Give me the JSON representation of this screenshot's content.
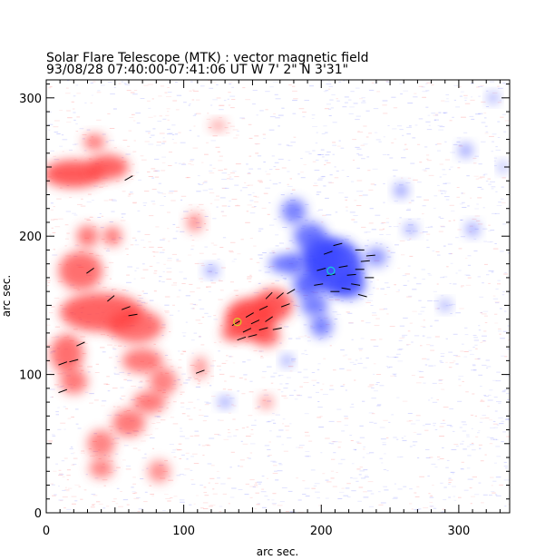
{
  "chart_data": {
    "type": "heatmap",
    "title": "Solar Flare Telescope (MTK) : vector magnetic field",
    "subtitle": "93/08/28  07:40:00-07:41:06 UT     W 7' 2\"   N 3'31\"",
    "xlabel": "arc sec.",
    "ylabel": "arc sec.",
    "xlim": [
      0,
      337
    ],
    "ylim": [
      0,
      313
    ],
    "x_ticks": [
      0,
      100,
      200,
      300
    ],
    "y_ticks": [
      0,
      100,
      200,
      300
    ],
    "x_tick_labels": [
      "0",
      "100",
      "200",
      "300"
    ],
    "y_tick_labels": [
      "0",
      "100",
      "200",
      "300"
    ],
    "colors": {
      "positive_polarity": "#ff3b3b",
      "negative_polarity": "#3b46ff",
      "vectors": "#000000",
      "frame": "#000000",
      "marker_cyan": "#18c8d8",
      "marker_yellow": "#d8c828"
    },
    "positive_regions": [
      {
        "x": 20,
        "y": 245,
        "rx": 22,
        "ry": 10,
        "strength": 0.9
      },
      {
        "x": 45,
        "y": 250,
        "rx": 15,
        "ry": 9,
        "strength": 0.8
      },
      {
        "x": 35,
        "y": 268,
        "rx": 8,
        "ry": 6,
        "strength": 0.6
      },
      {
        "x": 30,
        "y": 200,
        "rx": 8,
        "ry": 8,
        "strength": 0.6
      },
      {
        "x": 48,
        "y": 200,
        "rx": 7,
        "ry": 7,
        "strength": 0.6
      },
      {
        "x": 25,
        "y": 175,
        "rx": 16,
        "ry": 14,
        "strength": 0.7
      },
      {
        "x": 40,
        "y": 145,
        "rx": 30,
        "ry": 14,
        "strength": 0.8
      },
      {
        "x": 65,
        "y": 135,
        "rx": 20,
        "ry": 12,
        "strength": 0.7
      },
      {
        "x": 15,
        "y": 115,
        "rx": 12,
        "ry": 14,
        "strength": 0.7
      },
      {
        "x": 20,
        "y": 95,
        "rx": 10,
        "ry": 9,
        "strength": 0.6
      },
      {
        "x": 70,
        "y": 110,
        "rx": 15,
        "ry": 9,
        "strength": 0.6
      },
      {
        "x": 85,
        "y": 95,
        "rx": 10,
        "ry": 10,
        "strength": 0.5
      },
      {
        "x": 75,
        "y": 80,
        "rx": 12,
        "ry": 8,
        "strength": 0.6
      },
      {
        "x": 60,
        "y": 65,
        "rx": 12,
        "ry": 10,
        "strength": 0.6
      },
      {
        "x": 40,
        "y": 50,
        "rx": 10,
        "ry": 10,
        "strength": 0.5
      },
      {
        "x": 40,
        "y": 32,
        "rx": 9,
        "ry": 7,
        "strength": 0.5
      },
      {
        "x": 82,
        "y": 30,
        "rx": 8,
        "ry": 8,
        "strength": 0.4
      },
      {
        "x": 108,
        "y": 210,
        "rx": 6,
        "ry": 7,
        "strength": 0.4
      },
      {
        "x": 112,
        "y": 105,
        "rx": 5,
        "ry": 8,
        "strength": 0.4
      },
      {
        "x": 148,
        "y": 140,
        "rx": 18,
        "ry": 15,
        "strength": 1.0
      },
      {
        "x": 165,
        "y": 150,
        "rx": 14,
        "ry": 12,
        "strength": 0.9
      },
      {
        "x": 160,
        "y": 128,
        "rx": 10,
        "ry": 8,
        "strength": 0.7
      },
      {
        "x": 135,
        "y": 130,
        "rx": 8,
        "ry": 6,
        "strength": 0.6
      },
      {
        "x": 160,
        "y": 80,
        "rx": 5,
        "ry": 5,
        "strength": 0.3
      },
      {
        "x": 125,
        "y": 280,
        "rx": 6,
        "ry": 4,
        "strength": 0.25
      }
    ],
    "negative_regions": [
      {
        "x": 210,
        "y": 178,
        "rx": 20,
        "ry": 20,
        "strength": 1.0
      },
      {
        "x": 200,
        "y": 185,
        "rx": 15,
        "ry": 14,
        "strength": 0.9
      },
      {
        "x": 220,
        "y": 165,
        "rx": 12,
        "ry": 10,
        "strength": 0.8
      },
      {
        "x": 190,
        "y": 165,
        "rx": 10,
        "ry": 10,
        "strength": 0.8
      },
      {
        "x": 180,
        "y": 180,
        "rx": 8,
        "ry": 8,
        "strength": 0.7
      },
      {
        "x": 170,
        "y": 180,
        "rx": 8,
        "ry": 6,
        "strength": 0.6
      },
      {
        "x": 180,
        "y": 218,
        "rx": 9,
        "ry": 9,
        "strength": 0.6
      },
      {
        "x": 192,
        "y": 200,
        "rx": 12,
        "ry": 10,
        "strength": 0.7
      },
      {
        "x": 200,
        "y": 135,
        "rx": 8,
        "ry": 8,
        "strength": 0.6
      },
      {
        "x": 195,
        "y": 150,
        "rx": 10,
        "ry": 8,
        "strength": 0.6
      },
      {
        "x": 240,
        "y": 185,
        "rx": 8,
        "ry": 7,
        "strength": 0.4
      },
      {
        "x": 120,
        "y": 175,
        "rx": 5,
        "ry": 4,
        "strength": 0.4
      },
      {
        "x": 175,
        "y": 110,
        "rx": 4,
        "ry": 4,
        "strength": 0.4
      },
      {
        "x": 130,
        "y": 80,
        "rx": 5,
        "ry": 4,
        "strength": 0.35
      },
      {
        "x": 258,
        "y": 233,
        "rx": 5,
        "ry": 5,
        "strength": 0.4
      },
      {
        "x": 265,
        "y": 205,
        "rx": 5,
        "ry": 4,
        "strength": 0.3
      },
      {
        "x": 305,
        "y": 262,
        "rx": 5,
        "ry": 5,
        "strength": 0.35
      },
      {
        "x": 310,
        "y": 205,
        "rx": 5,
        "ry": 5,
        "strength": 0.3
      },
      {
        "x": 325,
        "y": 300,
        "rx": 4,
        "ry": 4,
        "strength": 0.3
      },
      {
        "x": 332,
        "y": 250,
        "rx": 3,
        "ry": 4,
        "strength": 0.3
      },
      {
        "x": 290,
        "y": 150,
        "rx": 4,
        "ry": 4,
        "strength": 0.3
      }
    ],
    "vectors": [
      {
        "x": 60,
        "y": 242,
        "angle": 30
      },
      {
        "x": 32,
        "y": 175,
        "angle": 35
      },
      {
        "x": 47,
        "y": 155,
        "angle": 40
      },
      {
        "x": 58,
        "y": 148,
        "angle": 20
      },
      {
        "x": 63,
        "y": 143,
        "angle": 10
      },
      {
        "x": 25,
        "y": 122,
        "angle": 25
      },
      {
        "x": 12,
        "y": 108,
        "angle": 20
      },
      {
        "x": 20,
        "y": 110,
        "angle": 15
      },
      {
        "x": 12,
        "y": 88,
        "angle": 20
      },
      {
        "x": 112,
        "y": 102,
        "angle": 20
      },
      {
        "x": 138,
        "y": 137,
        "angle": 30
      },
      {
        "x": 146,
        "y": 132,
        "angle": 25
      },
      {
        "x": 152,
        "y": 138,
        "angle": 25
      },
      {
        "x": 158,
        "y": 133,
        "angle": 15
      },
      {
        "x": 162,
        "y": 140,
        "angle": 35
      },
      {
        "x": 168,
        "y": 133,
        "angle": 10
      },
      {
        "x": 148,
        "y": 143,
        "angle": 30
      },
      {
        "x": 158,
        "y": 148,
        "angle": 25
      },
      {
        "x": 162,
        "y": 157,
        "angle": 45
      },
      {
        "x": 170,
        "y": 157,
        "angle": 40
      },
      {
        "x": 178,
        "y": 160,
        "angle": 30
      },
      {
        "x": 174,
        "y": 150,
        "angle": 20
      },
      {
        "x": 142,
        "y": 126,
        "angle": 20
      },
      {
        "x": 150,
        "y": 128,
        "angle": 15
      },
      {
        "x": 205,
        "y": 188,
        "angle": 20
      },
      {
        "x": 212,
        "y": 194,
        "angle": 15
      },
      {
        "x": 200,
        "y": 176,
        "angle": 15
      },
      {
        "x": 207,
        "y": 172,
        "angle": 10
      },
      {
        "x": 216,
        "y": 178,
        "angle": 10
      },
      {
        "x": 222,
        "y": 172,
        "angle": 5
      },
      {
        "x": 228,
        "y": 176,
        "angle": 0
      },
      {
        "x": 232,
        "y": 182,
        "angle": 5
      },
      {
        "x": 235,
        "y": 170,
        "angle": 0
      },
      {
        "x": 225,
        "y": 165,
        "angle": -10
      },
      {
        "x": 218,
        "y": 162,
        "angle": -10
      },
      {
        "x": 198,
        "y": 165,
        "angle": 10
      },
      {
        "x": 210,
        "y": 160,
        "angle": 0
      },
      {
        "x": 230,
        "y": 157,
        "angle": -15
      },
      {
        "x": 228,
        "y": 190,
        "angle": 0
      },
      {
        "x": 236,
        "y": 186,
        "angle": 5
      }
    ],
    "markers": [
      {
        "x": 207,
        "y": 175,
        "kind": "cyan-contour"
      },
      {
        "x": 139,
        "y": 138,
        "kind": "yellow-contour"
      }
    ]
  }
}
